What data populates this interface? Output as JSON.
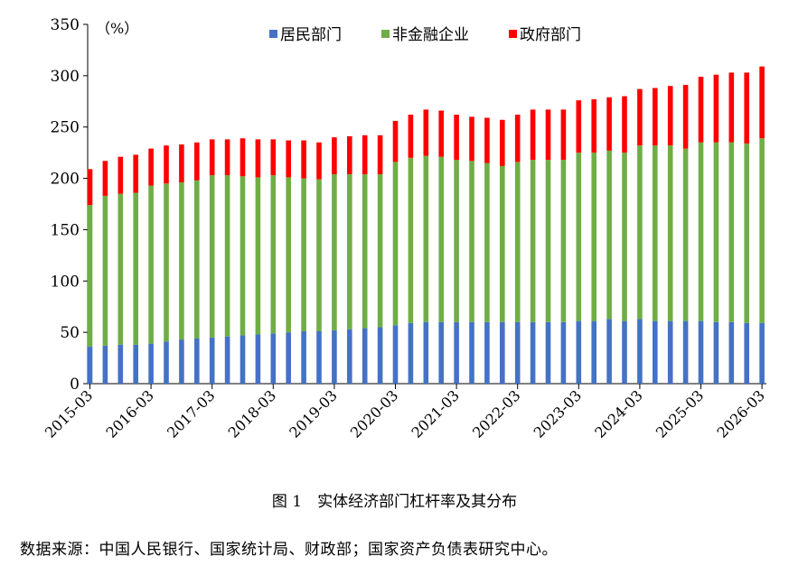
{
  "chart_data": {
    "type": "bar",
    "stacked": true,
    "unit_label": "（%）",
    "ylim": [
      0,
      350
    ],
    "yticks": [
      0,
      50,
      100,
      150,
      200,
      250,
      300,
      350
    ],
    "legend_position": "top-center",
    "grid": false,
    "xtick_labels": [
      "2015-03",
      "2016-03",
      "2017-03",
      "2018-03",
      "2019-03",
      "2020-03",
      "2021-03",
      "2022-03",
      "2023-03",
      "2024-03",
      "2025-03",
      "2026-03"
    ],
    "categories": [
      "2015-03",
      "2015-06",
      "2015-09",
      "2015-12",
      "2016-03",
      "2016-06",
      "2016-09",
      "2016-12",
      "2017-03",
      "2017-06",
      "2017-09",
      "2017-12",
      "2018-03",
      "2018-06",
      "2018-09",
      "2018-12",
      "2019-03",
      "2019-06",
      "2019-09",
      "2019-12",
      "2020-03",
      "2020-06",
      "2020-09",
      "2020-12",
      "2021-03",
      "2021-06",
      "2021-09",
      "2021-12",
      "2022-03",
      "2022-06",
      "2022-09",
      "2022-12",
      "2023-03",
      "2023-06",
      "2023-09",
      "2023-12",
      "2024-03",
      "2024-06",
      "2024-09",
      "2024-12",
      "2025-03",
      "2025-06",
      "2025-09",
      "2025-12",
      "2026-03"
    ],
    "series": [
      {
        "name": "居民部门",
        "color": "#4472C4",
        "values": [
          36,
          37,
          38,
          38,
          39,
          41,
          43,
          44,
          45,
          46,
          47,
          48,
          49,
          50,
          51,
          51,
          52,
          53,
          54,
          55,
          57,
          59,
          60,
          60,
          60,
          60,
          60,
          60,
          60,
          60,
          60,
          60,
          61,
          61,
          63,
          61,
          63,
          61,
          61,
          61,
          61,
          60,
          60,
          59,
          59
        ]
      },
      {
        "name": "非金融企业",
        "color": "#70AD47",
        "values": [
          138,
          146,
          147,
          148,
          154,
          154,
          153,
          154,
          158,
          157,
          155,
          153,
          154,
          151,
          149,
          148,
          152,
          151,
          150,
          149,
          159,
          161,
          162,
          161,
          158,
          157,
          155,
          152,
          156,
          158,
          158,
          158,
          164,
          164,
          164,
          164,
          169,
          171,
          171,
          168,
          174,
          175,
          175,
          175,
          180
        ]
      },
      {
        "name": "政府部门",
        "color": "#FF0000",
        "values": [
          35,
          34,
          36,
          37,
          36,
          37,
          37,
          37,
          35,
          35,
          37,
          37,
          35,
          36,
          37,
          36,
          36,
          37,
          38,
          38,
          40,
          42,
          45,
          45,
          44,
          43,
          44,
          45,
          46,
          49,
          49,
          49,
          51,
          52,
          52,
          55,
          55,
          56,
          58,
          62,
          64,
          66,
          68,
          69,
          70
        ]
      }
    ]
  },
  "caption": "图 1　实体经济部门杠杆率及其分布",
  "source": "数据来源：中国人民银行、国家统计局、财政部；国家资产负债表研究中心。"
}
